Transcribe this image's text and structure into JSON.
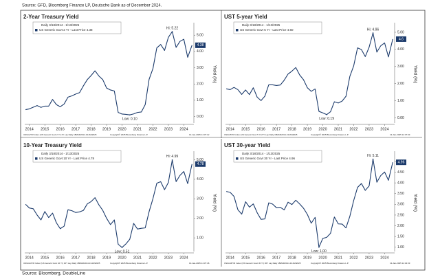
{
  "source_top": "Source: GFD, Bloomberg Finance LP, Deutsche Bank as of December 2024.",
  "source_bottom": "Source: Bloomberg, DoubleLine",
  "chart_data": [
    {
      "type": "line",
      "title": "2-Year Treasury Yield",
      "legend_title": "Daily 3/18/2014 - 1/13/2025",
      "y_label": "Yield (%)",
      "x": [
        2014.25,
        2014.5,
        2014.75,
        2015,
        2015.25,
        2015.5,
        2015.75,
        2016,
        2016.25,
        2016.5,
        2016.75,
        2017,
        2017.25,
        2017.5,
        2017.75,
        2018,
        2018.25,
        2018.5,
        2018.75,
        2019,
        2019.25,
        2019.5,
        2019.75,
        2020,
        2020.25,
        2020.5,
        2020.75,
        2021,
        2021.25,
        2021.5,
        2021.75,
        2022,
        2022.25,
        2022.5,
        2022.75,
        2023,
        2023.25,
        2023.5,
        2023.75,
        2024,
        2024.25,
        2024.5,
        2024.75,
        2025.03
      ],
      "series": [
        {
          "name": "US Generic Govt 2 Yr - Last Price 4.38",
          "color": "#1b3a6b",
          "values": [
            0.42,
            0.47,
            0.57,
            0.67,
            0.56,
            0.64,
            0.64,
            1.05,
            0.73,
            0.6,
            0.77,
            1.19,
            1.27,
            1.38,
            1.47,
            1.89,
            2.27,
            2.52,
            2.81,
            2.49,
            2.27,
            1.75,
            1.63,
            1.57,
            0.25,
            0.15,
            0.13,
            0.1,
            0.16,
            0.25,
            0.28,
            0.73,
            2.28,
            2.95,
            4.22,
            4.43,
            4.06,
            4.87,
            5.22,
            4.25,
            4.62,
            4.75,
            3.64,
            4.38
          ]
        }
      ],
      "last_price": 4.38,
      "hi": {
        "label": "Hi: 5.22",
        "x": 2023.75,
        "value": 5.22
      },
      "low": {
        "label": "Low: 0.10",
        "x": 2021,
        "value": 0.1
      },
      "xlim": [
        2014.2,
        2025.15
      ],
      "xticks": [
        {
          "value": 2014.5,
          "label": "2014"
        },
        {
          "value": 2015.5,
          "label": "2015"
        },
        {
          "value": 2016.5,
          "label": "2016"
        },
        {
          "value": 2017.5,
          "label": "2017"
        },
        {
          "value": 2018.5,
          "label": "2018"
        },
        {
          "value": 2019.5,
          "label": "2019"
        },
        {
          "value": 2020.5,
          "label": "2020"
        },
        {
          "value": 2021.5,
          "label": "2021"
        },
        {
          "value": 2022.5,
          "label": "2022"
        },
        {
          "value": 2023.5,
          "label": "2023"
        },
        {
          "value": 2024.5,
          "label": "2024"
        }
      ],
      "ylim": [
        -0.4,
        5.6
      ],
      "yticks": [
        {
          "value": 0,
          "label": "0.00"
        },
        {
          "value": 1,
          "label": "1.00"
        },
        {
          "value": 2,
          "label": "2.00"
        },
        {
          "value": 3,
          "label": "3.00"
        },
        {
          "value": 4,
          "label": "4.00"
        },
        {
          "value": 5,
          "label": "5.00"
        }
      ],
      "footer": [
        "USGG2YR Index (US Generic Govt 2 Yr) 2Y Lay Daily 18MAR2014-13JAN2025",
        "Copyright© 2025 Bloomberg Finance L.P.",
        "13-Jan-2025 14:37:12"
      ]
    },
    {
      "type": "line",
      "title": "UST 5-year Yield",
      "legend_title": "Daily 3/18/2014 - 1/13/2025",
      "y_label": "Yield (%)",
      "x": [
        2014.25,
        2014.5,
        2014.75,
        2015,
        2015.25,
        2015.5,
        2015.75,
        2016,
        2016.25,
        2016.5,
        2016.75,
        2017,
        2017.25,
        2017.5,
        2017.75,
        2018,
        2018.25,
        2018.5,
        2018.75,
        2019,
        2019.25,
        2019.5,
        2019.75,
        2020,
        2020.25,
        2020.5,
        2020.75,
        2021,
        2021.25,
        2021.5,
        2021.75,
        2022,
        2022.25,
        2022.5,
        2022.75,
        2023,
        2023.25,
        2023.5,
        2023.75,
        2024,
        2024.25,
        2024.5,
        2024.75,
        2025.03
      ],
      "series": [
        {
          "name": "US Generic Govt 5 Yr - Last Price 4.60",
          "color": "#1b3a6b",
          "values": [
            1.7,
            1.65,
            1.78,
            1.65,
            1.37,
            1.63,
            1.36,
            1.76,
            1.21,
            1.01,
            1.27,
            1.93,
            1.93,
            1.89,
            1.92,
            2.2,
            2.56,
            2.73,
            2.94,
            2.51,
            2.23,
            1.76,
            1.55,
            1.69,
            0.38,
            0.29,
            0.19,
            0.36,
            0.94,
            0.87,
            0.98,
            1.26,
            2.42,
            3.04,
            4.09,
            3.99,
            3.58,
            4.13,
            4.96,
            3.84,
            4.21,
            4.38,
            3.56,
            4.6
          ]
        }
      ],
      "last_price": 4.6,
      "hi": {
        "label": "Hi: 4.96",
        "x": 2023.75,
        "value": 4.96
      },
      "low": {
        "label": "Low: 0.19",
        "x": 2020.75,
        "value": 0.19
      },
      "xlim": [
        2014.2,
        2025.15
      ],
      "xticks": [
        {
          "value": 2014.5,
          "label": "2014"
        },
        {
          "value": 2015.5,
          "label": "2015"
        },
        {
          "value": 2016.5,
          "label": "2016"
        },
        {
          "value": 2017.5,
          "label": "2017"
        },
        {
          "value": 2018.5,
          "label": "2018"
        },
        {
          "value": 2019.5,
          "label": "2019"
        },
        {
          "value": 2020.5,
          "label": "2020"
        },
        {
          "value": 2021.5,
          "label": "2021"
        },
        {
          "value": 2022.5,
          "label": "2022"
        },
        {
          "value": 2023.5,
          "label": "2023"
        },
        {
          "value": 2024.5,
          "label": "2024"
        }
      ],
      "ylim": [
        -0.3,
        5.4
      ],
      "yticks": [
        {
          "value": 0,
          "label": "0.00"
        },
        {
          "value": 1,
          "label": "1.00"
        },
        {
          "value": 2,
          "label": "2.00"
        },
        {
          "value": 3,
          "label": "3.00"
        },
        {
          "value": 4,
          "label": "4.00"
        },
        {
          "value": 5,
          "label": "5.00"
        }
      ],
      "footer": [
        "USGG5YR Index (US Generic Govt 5 Yr) 5Y Lay Daily 18MAR2014-13JAN2025",
        "Copyright© 2025 Bloomberg Finance L.P.",
        "13-Jan-2025 14:37:03"
      ]
    },
    {
      "type": "line",
      "title": "10-Year Treasury Yield",
      "legend_title": "Daily 3/18/2014 - 1/13/2025",
      "y_label": "Yield (%)",
      "x": [
        2014.25,
        2014.5,
        2014.75,
        2015,
        2015.25,
        2015.5,
        2015.75,
        2016,
        2016.25,
        2016.5,
        2016.75,
        2017,
        2017.25,
        2017.5,
        2017.75,
        2018,
        2018.25,
        2018.5,
        2018.75,
        2019,
        2019.25,
        2019.5,
        2019.75,
        2020,
        2020.25,
        2020.5,
        2020.75,
        2021,
        2021.25,
        2021.5,
        2021.75,
        2022,
        2022.25,
        2022.5,
        2022.75,
        2023,
        2023.25,
        2023.5,
        2023.75,
        2024,
        2024.25,
        2024.5,
        2024.75,
        2025.03
      ],
      "series": [
        {
          "name": "US Generic Govt 10 Yr - Last Price 4.78",
          "color": "#1b3a6b",
          "values": [
            2.72,
            2.53,
            2.49,
            2.17,
            1.92,
            2.35,
            2.04,
            2.27,
            1.77,
            1.47,
            1.6,
            2.44,
            2.39,
            2.3,
            2.33,
            2.41,
            2.74,
            2.86,
            3.06,
            2.69,
            2.41,
            2,
            1.68,
            1.92,
            0.67,
            0.51,
            0.69,
            0.93,
            1.74,
            1.45,
            1.49,
            1.51,
            2.34,
            3.01,
            3.8,
            3.88,
            3.47,
            3.84,
            4.99,
            3.88,
            4.2,
            4.4,
            3.78,
            4.78
          ]
        }
      ],
      "last_price": 4.78,
      "hi": {
        "label": "Hi: 4.99",
        "x": 2023.75,
        "value": 4.99
      },
      "low": {
        "label": "Low: 0.51",
        "x": 2020.5,
        "value": 0.51
      },
      "xlim": [
        2014.2,
        2025.15
      ],
      "xticks": [
        {
          "value": 2014.5,
          "label": "2014"
        },
        {
          "value": 2015.5,
          "label": "2015"
        },
        {
          "value": 2016.5,
          "label": "2016"
        },
        {
          "value": 2017.5,
          "label": "2017"
        },
        {
          "value": 2018.5,
          "label": "2018"
        },
        {
          "value": 2019.5,
          "label": "2019"
        },
        {
          "value": 2020.5,
          "label": "2020"
        },
        {
          "value": 2021.5,
          "label": "2021"
        },
        {
          "value": 2022.5,
          "label": "2022"
        },
        {
          "value": 2023.5,
          "label": "2023"
        },
        {
          "value": 2024.5,
          "label": "2024"
        }
      ],
      "ylim": [
        0.3,
        5.3
      ],
      "yticks": [
        {
          "value": 1,
          "label": "1.00"
        },
        {
          "value": 2,
          "label": "2.00"
        },
        {
          "value": 3,
          "label": "3.00"
        },
        {
          "value": 4,
          "label": "4.00"
        },
        {
          "value": 5,
          "label": "5.00"
        }
      ],
      "footer": [
        "USGG10YR Index (US Generic Govt 10 Yr) 10Y Lay Daily 18MAR2014-13JAN2025",
        "Copyright© 2025 Bloomberg Finance L.P.",
        "13-Jan-2025 14:37:46"
      ]
    },
    {
      "type": "line",
      "title": "UST 30-year Yield",
      "legend_title": "Daily 3/18/2014 - 1/13/2025",
      "y_label": "Yield (%)",
      "x": [
        2014.25,
        2014.5,
        2014.75,
        2015,
        2015.25,
        2015.5,
        2015.75,
        2016,
        2016.25,
        2016.5,
        2016.75,
        2017,
        2017.25,
        2017.5,
        2017.75,
        2018,
        2018.25,
        2018.5,
        2018.75,
        2019,
        2019.25,
        2019.5,
        2019.75,
        2020,
        2020.25,
        2020.5,
        2020.75,
        2021,
        2021.25,
        2021.5,
        2021.75,
        2022,
        2022.25,
        2022.5,
        2022.75,
        2023,
        2023.25,
        2023.5,
        2023.75,
        2024,
        2024.25,
        2024.5,
        2024.75,
        2025.03
      ],
      "series": [
        {
          "name": "US Generic Govt 30 Yr - Last Price 4.96",
          "color": "#1b3a6b",
          "values": [
            3.6,
            3.56,
            3.37,
            2.75,
            2.54,
            3.12,
            2.87,
            3.02,
            2.61,
            2.3,
            2.32,
            3.07,
            3.01,
            2.84,
            2.86,
            2.74,
            3.1,
            2.99,
            3.19,
            3.02,
            2.82,
            2.53,
            2.12,
            2.39,
            1,
            1.41,
            1.46,
            1.65,
            2.41,
            2.09,
            2.08,
            1.9,
            2.44,
            3.18,
            3.79,
            3.97,
            3.65,
            3.86,
            5.11,
            4.03,
            4.34,
            4.51,
            4.12,
            4.96
          ]
        }
      ],
      "last_price": 4.96,
      "hi": {
        "label": "Hi: 5.11",
        "x": 2023.75,
        "value": 5.11
      },
      "low": {
        "label": "Low: 1.00",
        "x": 2020.25,
        "value": 1
      },
      "xlim": [
        2014.2,
        2025.15
      ],
      "xticks": [
        {
          "value": 2014.5,
          "label": "2014"
        },
        {
          "value": 2015.5,
          "label": "2015"
        },
        {
          "value": 2016.5,
          "label": "2016"
        },
        {
          "value": 2017.5,
          "label": "2017"
        },
        {
          "value": 2018.5,
          "label": "2018"
        },
        {
          "value": 2019.5,
          "label": "2019"
        },
        {
          "value": 2020.5,
          "label": "2020"
        },
        {
          "value": 2021.5,
          "label": "2021"
        },
        {
          "value": 2022.5,
          "label": "2022"
        },
        {
          "value": 2023.5,
          "label": "2023"
        },
        {
          "value": 2024.5,
          "label": "2024"
        }
      ],
      "ylim": [
        0.8,
        5.35
      ],
      "yticks": [
        {
          "value": 1,
          "label": "1.00"
        },
        {
          "value": 1.5,
          "label": "1.50"
        },
        {
          "value": 2,
          "label": "2.00"
        },
        {
          "value": 2.5,
          "label": "2.50"
        },
        {
          "value": 3,
          "label": "3.00"
        },
        {
          "value": 3.5,
          "label": "3.50"
        },
        {
          "value": 4,
          "label": "4.00"
        },
        {
          "value": 4.5,
          "label": "4.50"
        },
        {
          "value": 5,
          "label": "5.00"
        }
      ],
      "footer": [
        "USGG30YR Index (US Generic Govt 30 Yr) 30Y Lay Daily 18MAR2014-13JAN2025",
        "Copyright© 2025 Bloomberg Finance L.P.",
        "13-Jan-2025 14:34:33"
      ]
    }
  ]
}
